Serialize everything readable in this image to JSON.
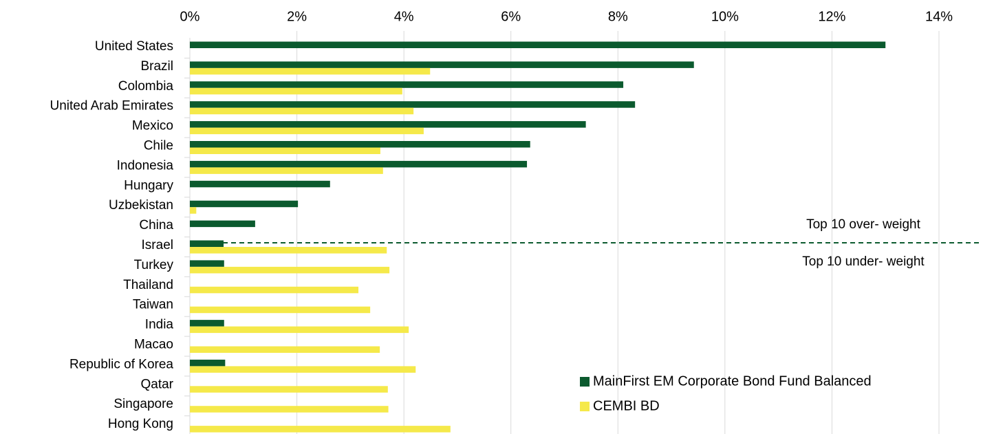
{
  "chart_data": {
    "type": "hbar",
    "categories": [
      "United States",
      "Brazil",
      "Colombia",
      "United Arab Emirates",
      "Mexico",
      "Chile",
      "Indonesia",
      "Hungary",
      "Uzbekistan",
      "China",
      "Israel",
      "Turkey",
      "Thailand",
      "Taiwan",
      "India",
      "Macao",
      "Republic of Korea",
      "Qatar",
      "Singapore",
      "Hong Kong"
    ],
    "series": [
      {
        "name": "MainFirst EM Corporate Bond Fund Balanced",
        "color": "#0b5a2e",
        "values": [
          13.0,
          9.42,
          8.1,
          8.32,
          7.4,
          6.36,
          6.3,
          2.62,
          2.02,
          1.22,
          0.63,
          0.64,
          null,
          null,
          0.64,
          null,
          0.66,
          null,
          null,
          null
        ]
      },
      {
        "name": "CEMBI BD",
        "color": "#f5e94a",
        "values": [
          null,
          4.49,
          3.97,
          4.18,
          4.37,
          3.56,
          3.61,
          null,
          0.12,
          null,
          3.68,
          3.73,
          3.15,
          3.37,
          4.09,
          3.55,
          4.22,
          3.7,
          3.71,
          4.87
        ]
      }
    ],
    "xlim": [
      0,
      14
    ],
    "xticks": [
      {
        "value": 0,
        "label": "0%"
      },
      {
        "value": 2,
        "label": "2%"
      },
      {
        "value": 4,
        "label": "4%"
      },
      {
        "value": 6,
        "label": "6%"
      },
      {
        "value": 8,
        "label": "8%"
      },
      {
        "value": 10,
        "label": "10%"
      },
      {
        "value": 12,
        "label": "12%"
      },
      {
        "value": 14,
        "label": "14%"
      }
    ],
    "grid": true,
    "annotations": [
      "Top 10 over- weight",
      "Top 10 under- weight"
    ]
  }
}
